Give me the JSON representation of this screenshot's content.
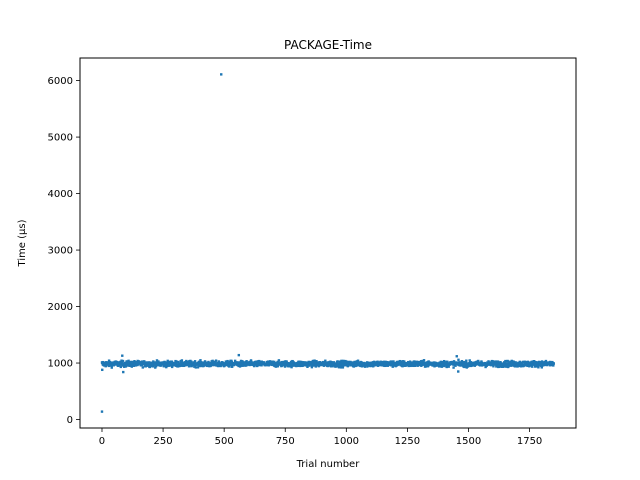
{
  "chart_data": {
    "type": "scatter",
    "title": "PACKAGE-Time",
    "xlabel": "Trial number",
    "ylabel": "Time (µs)",
    "xlim": [
      -90,
      1940
    ],
    "ylim": [
      -150,
      6400
    ],
    "xticks": [
      0,
      250,
      500,
      750,
      1000,
      1250,
      1500,
      1750
    ],
    "yticks": [
      0,
      1000,
      2000,
      3000,
      4000,
      5000,
      6000
    ],
    "grid": false,
    "legend": "none",
    "marker_color": "#1f77b4",
    "n_points": 1850,
    "baseline": {
      "center": 985,
      "spread": 45
    },
    "outliers": [
      {
        "x": 0,
        "y": 140
      },
      {
        "x": 1,
        "y": 880
      },
      {
        "x": 488,
        "y": 6110
      },
      {
        "x": 83,
        "y": 1130
      },
      {
        "x": 87,
        "y": 840
      },
      {
        "x": 560,
        "y": 1140
      },
      {
        "x": 1452,
        "y": 1120
      },
      {
        "x": 1458,
        "y": 850
      }
    ]
  }
}
